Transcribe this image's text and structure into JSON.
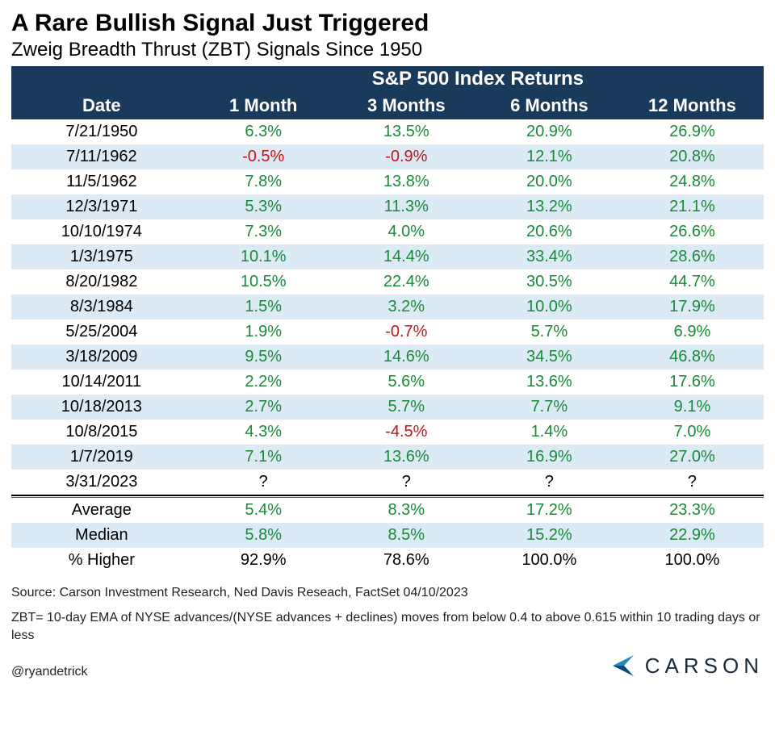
{
  "title": "A Rare Bullish Signal Just Triggered",
  "subtitle": "Zweig Breadth Thrust (ZBT) Signals Since 1950",
  "header": {
    "spanTitle": "S&P 500 Index Returns",
    "dateLabel": "Date",
    "cols": [
      "1 Month",
      "3 Months",
      "6 Months",
      "12 Months"
    ]
  },
  "colors": {
    "headerBg": "#1a3a5c",
    "headerText": "#ffffff",
    "rowOdd": "#ffffff",
    "rowEven": "#dbeaf4",
    "positive": "#1a8a3a",
    "negative": "#c01818",
    "neutral": "#000000"
  },
  "typography": {
    "titleSize": 30,
    "subtitleSize": 24,
    "headerSize": 24,
    "subHeaderSize": 22,
    "cellSize": 20,
    "footnoteSize": 16,
    "fontFamily": "Arial"
  },
  "rows": [
    {
      "date": "7/21/1950",
      "m1": "6.3%",
      "m3": "13.5%",
      "m6": "20.9%",
      "m12": "26.9%",
      "s1": "pos",
      "s3": "pos",
      "s6": "pos",
      "s12": "pos"
    },
    {
      "date": "7/11/1962",
      "m1": "-0.5%",
      "m3": "-0.9%",
      "m6": "12.1%",
      "m12": "20.8%",
      "s1": "neg",
      "s3": "neg",
      "s6": "pos",
      "s12": "pos"
    },
    {
      "date": "11/5/1962",
      "m1": "7.8%",
      "m3": "13.8%",
      "m6": "20.0%",
      "m12": "24.8%",
      "s1": "pos",
      "s3": "pos",
      "s6": "pos",
      "s12": "pos"
    },
    {
      "date": "12/3/1971",
      "m1": "5.3%",
      "m3": "11.3%",
      "m6": "13.2%",
      "m12": "21.1%",
      "s1": "pos",
      "s3": "pos",
      "s6": "pos",
      "s12": "pos"
    },
    {
      "date": "10/10/1974",
      "m1": "7.3%",
      "m3": "4.0%",
      "m6": "20.6%",
      "m12": "26.6%",
      "s1": "pos",
      "s3": "pos",
      "s6": "pos",
      "s12": "pos"
    },
    {
      "date": "1/3/1975",
      "m1": "10.1%",
      "m3": "14.4%",
      "m6": "33.4%",
      "m12": "28.6%",
      "s1": "pos",
      "s3": "pos",
      "s6": "pos",
      "s12": "pos"
    },
    {
      "date": "8/20/1982",
      "m1": "10.5%",
      "m3": "22.4%",
      "m6": "30.5%",
      "m12": "44.7%",
      "s1": "pos",
      "s3": "pos",
      "s6": "pos",
      "s12": "pos"
    },
    {
      "date": "8/3/1984",
      "m1": "1.5%",
      "m3": "3.2%",
      "m6": "10.0%",
      "m12": "17.9%",
      "s1": "pos",
      "s3": "pos",
      "s6": "pos",
      "s12": "pos"
    },
    {
      "date": "5/25/2004",
      "m1": "1.9%",
      "m3": "-0.7%",
      "m6": "5.7%",
      "m12": "6.9%",
      "s1": "pos",
      "s3": "neg",
      "s6": "pos",
      "s12": "pos"
    },
    {
      "date": "3/18/2009",
      "m1": "9.5%",
      "m3": "14.6%",
      "m6": "34.5%",
      "m12": "46.8%",
      "s1": "pos",
      "s3": "pos",
      "s6": "pos",
      "s12": "pos"
    },
    {
      "date": "10/14/2011",
      "m1": "2.2%",
      "m3": "5.6%",
      "m6": "13.6%",
      "m12": "17.6%",
      "s1": "pos",
      "s3": "pos",
      "s6": "pos",
      "s12": "pos"
    },
    {
      "date": "10/18/2013",
      "m1": "2.7%",
      "m3": "5.7%",
      "m6": "7.7%",
      "m12": "9.1%",
      "s1": "pos",
      "s3": "pos",
      "s6": "pos",
      "s12": "pos"
    },
    {
      "date": "10/8/2015",
      "m1": "4.3%",
      "m3": "-4.5%",
      "m6": "1.4%",
      "m12": "7.0%",
      "s1": "pos",
      "s3": "neg",
      "s6": "pos",
      "s12": "pos"
    },
    {
      "date": "1/7/2019",
      "m1": "7.1%",
      "m3": "13.6%",
      "m6": "16.9%",
      "m12": "27.0%",
      "s1": "pos",
      "s3": "pos",
      "s6": "pos",
      "s12": "pos"
    },
    {
      "date": "3/31/2023",
      "m1": "?",
      "m3": "?",
      "m6": "?",
      "m12": "?",
      "s1": "neutral",
      "s3": "neutral",
      "s6": "neutral",
      "s12": "neutral"
    }
  ],
  "summary": [
    {
      "label": "Average",
      "m1": "5.4%",
      "m3": "8.3%",
      "m6": "17.2%",
      "m12": "23.3%",
      "cls": "pos"
    },
    {
      "label": "Median",
      "m1": "5.8%",
      "m3": "8.5%",
      "m6": "15.2%",
      "m12": "22.9%",
      "cls": "pos"
    },
    {
      "label": "% Higher",
      "m1": "92.9%",
      "m3": "78.6%",
      "m6": "100.0%",
      "m12": "100.0%",
      "cls": "neutral"
    }
  ],
  "footnotes": {
    "source": "Source: Carson Investment Research, Ned Davis Reseach, FactSet 04/10/2023",
    "definition": "ZBT= 10-day EMA of NYSE advances/(NYSE advances + declines) moves from below 0.4 to above 0.615 within 10 trading days or less"
  },
  "handle": "@ryandetrick",
  "logoText": "CARSON",
  "logoColors": {
    "top": "#2a86b8",
    "bottom": "#0a4a78"
  }
}
